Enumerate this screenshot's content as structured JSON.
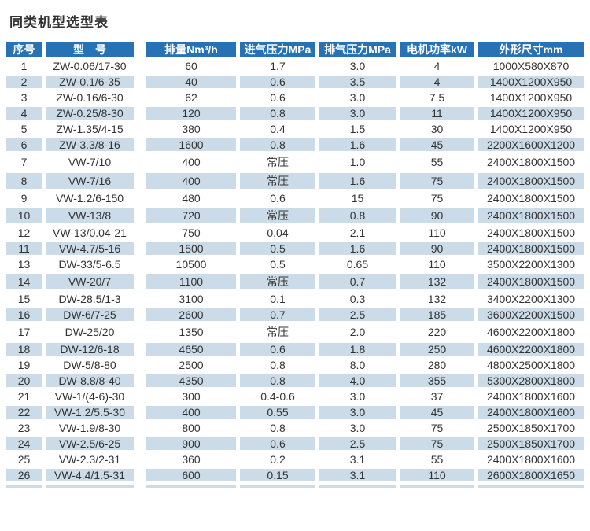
{
  "page": {
    "title": "同类机型选型表"
  },
  "colors": {
    "header_bg": "#2672b4",
    "stripe_bg": "#cbdce8",
    "text": "#333333"
  },
  "table": {
    "headers": [
      "序号",
      "型　号",
      "排量Nm³/h",
      "进气压力MPa",
      "排气压力MPa",
      "电机功率kW",
      "外形尺寸mm"
    ],
    "rows": [
      [
        "1",
        "ZW-0.06/17-30",
        "60",
        "1.7",
        "3.0",
        "4",
        "1000X580X870"
      ],
      [
        "2",
        "ZW-0.1/6-35",
        "40",
        "0.6",
        "3.5",
        "4",
        "1400X1200X950"
      ],
      [
        "3",
        "ZW-0.16/6-30",
        "62",
        "0.6",
        "3.0",
        "7.5",
        "1400X1200X950"
      ],
      [
        "4",
        "ZW-0.25/8-30",
        "120",
        "0.8",
        "3.0",
        "11",
        "1400X1200X950"
      ],
      [
        "5",
        "ZW-1.35/4-15",
        "380",
        "0.4",
        "1.5",
        "30",
        "1400X1200X950"
      ],
      [
        "6",
        "ZW-3.3/8-16",
        "1600",
        "0.8",
        "1.6",
        "45",
        "2200X1600X1200"
      ],
      [
        "7",
        "VW-7/10",
        "400",
        "常压",
        "1.0",
        "55",
        "2400X1800X1500"
      ],
      [
        "8",
        "VW-7/16",
        "400",
        "常压",
        "1.6",
        "75",
        "2400X1800X1500"
      ],
      [
        "9",
        "VW-1.2/6-150",
        "480",
        "0.6",
        "15",
        "75",
        "2400X1800X1500"
      ],
      [
        "10",
        "VW-13/8",
        "720",
        "常压",
        "0.8",
        "90",
        "2400X1800X1500"
      ],
      [
        "12",
        "VW-13/0.04-21",
        "750",
        "0.04",
        "2.1",
        "110",
        "2400X1800X1500"
      ],
      [
        "11",
        "VW-4.7/5-16",
        "1500",
        "0.5",
        "1.6",
        "90",
        "2400X1800X1500"
      ],
      [
        "13",
        "DW-33/5-6.5",
        "10500",
        "0.5",
        "0.65",
        "110",
        "3500X2200X1300"
      ],
      [
        "14",
        "VW-20/7",
        "1100",
        "常压",
        "0.7",
        "132",
        "2400X1800X1500"
      ],
      [
        "15",
        "DW-28.5/1-3",
        "3100",
        "0.1",
        "0.3",
        "132",
        "3400X2200X1300"
      ],
      [
        "16",
        "DW-6/7-25",
        "2600",
        "0.7",
        "2.5",
        "185",
        "3600X2200X1500"
      ],
      [
        "17",
        "DW-25/20",
        "1350",
        "常压",
        "2.0",
        "220",
        "4600X2200X1800"
      ],
      [
        "18",
        "DW-12/6-18",
        "4650",
        "0.6",
        "1.8",
        "250",
        "4600X2200X1800"
      ],
      [
        "19",
        "DW-5/8-80",
        "2500",
        "0.8",
        "8.0",
        "280",
        "4800X2500X1800"
      ],
      [
        "20",
        "DW-8.8/8-40",
        "4350",
        "0.8",
        "4.0",
        "355",
        "5300X2800X1800"
      ],
      [
        "21",
        "VW-1/(4-6)-30",
        "300",
        "0.4-0.6",
        "3.0",
        "37",
        "2400X1800X1600"
      ],
      [
        "22",
        "VW-1.2/5.5-30",
        "400",
        "0.55",
        "3.0",
        "45",
        "2400X1800X1600"
      ],
      [
        "23",
        "VW-1.9/8-30",
        "800",
        "0.8",
        "3.0",
        "75",
        "2500X1850X1700"
      ],
      [
        "24",
        "VW-2.5/6-25",
        "900",
        "0.6",
        "2.5",
        "75",
        "2500X1850X1700"
      ],
      [
        "25",
        "VW-2.3/2-31",
        "360",
        "0.2",
        "3.1",
        "55",
        "2400X1800X1600"
      ],
      [
        "26",
        "VW-4.4/1.5-31",
        "600",
        "0.15",
        "3.1",
        "110",
        "2600X1800X1650"
      ]
    ]
  }
}
